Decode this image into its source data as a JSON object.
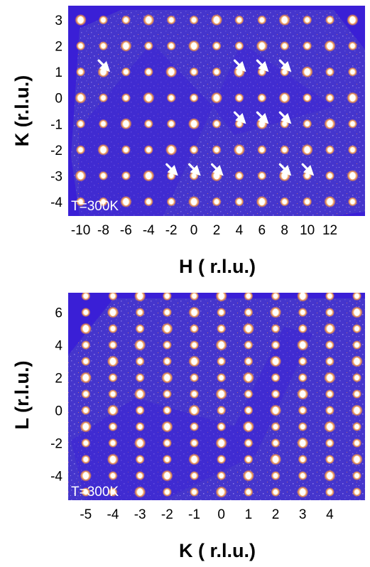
{
  "chart_data": [
    {
      "type": "heatmap",
      "xlabel": "H ( r.l.u.)",
      "ylabel": "K (r.l.u.)",
      "annotation": "T=300K",
      "xlim": [
        -11.1,
        15.1
      ],
      "ylim": [
        -4.55,
        3.55
      ],
      "x_ticks": [
        -10,
        -8,
        -6,
        -4,
        -2,
        0,
        2,
        4,
        6,
        8,
        10,
        12
      ],
      "y_ticks": [
        3,
        2,
        1,
        0,
        -1,
        -2,
        -3,
        -4
      ],
      "x_tick_labels": [
        "-10",
        "-8",
        "-6",
        "-4",
        "-2",
        "0",
        "2",
        "4",
        "6",
        "8",
        "10",
        "12"
      ],
      "y_tick_labels": [
        "3",
        "2",
        "1",
        "0",
        "-1",
        "-2",
        "-3",
        "-4"
      ],
      "colors": {
        "background": "#3a1fd6",
        "detector": "#4434cc",
        "spot": "#ffffff",
        "halo": "#ff9a3c",
        "arrow": "#ffffff"
      },
      "peaks_x": [
        -10,
        -8,
        -6,
        -4,
        -2,
        0,
        2,
        4,
        6,
        8,
        10,
        12,
        14
      ],
      "peaks_y": [
        3,
        2,
        1,
        0,
        -1,
        -2,
        -3,
        -4
      ],
      "arrows": [
        [
          -7.4,
          1
        ],
        [
          4.6,
          1
        ],
        [
          6.6,
          1
        ],
        [
          8.6,
          1
        ],
        [
          4.6,
          -1
        ],
        [
          6.6,
          -1
        ],
        [
          8.6,
          -1
        ],
        [
          -1.4,
          -3
        ],
        [
          0.6,
          -3
        ],
        [
          2.6,
          -3
        ],
        [
          8.6,
          -3
        ],
        [
          10.6,
          -3
        ]
      ]
    },
    {
      "type": "heatmap",
      "xlabel": "K ( r.l.u.)",
      "ylabel": "L (r.l.u.)",
      "annotation": "T=300K",
      "xlim": [
        -5.65,
        5.3
      ],
      "ylim": [
        -5.5,
        7.2
      ],
      "x_ticks": [
        -5,
        -4,
        -3,
        -2,
        -1,
        0,
        1,
        2,
        3,
        4
      ],
      "y_ticks": [
        6,
        4,
        2,
        0,
        -2,
        -4
      ],
      "x_tick_labels": [
        "-5",
        "-4",
        "-3",
        "-2",
        "-1",
        "0",
        "1",
        "2",
        "3",
        "4"
      ],
      "y_tick_labels": [
        "6",
        "4",
        "2",
        "0",
        "-2",
        "-4"
      ],
      "colors": {
        "background": "#3a1fd6",
        "detector": "#4434cc",
        "spot": "#ffffff",
        "halo": "#ff9a3c"
      },
      "peaks_x": [
        -5,
        -4,
        -3,
        -2,
        -1,
        0,
        1,
        2,
        3,
        4,
        5
      ],
      "peaks_y": [
        7,
        6,
        5,
        4,
        3,
        2,
        1,
        0,
        -1,
        -2,
        -3,
        -4,
        -5
      ]
    }
  ]
}
